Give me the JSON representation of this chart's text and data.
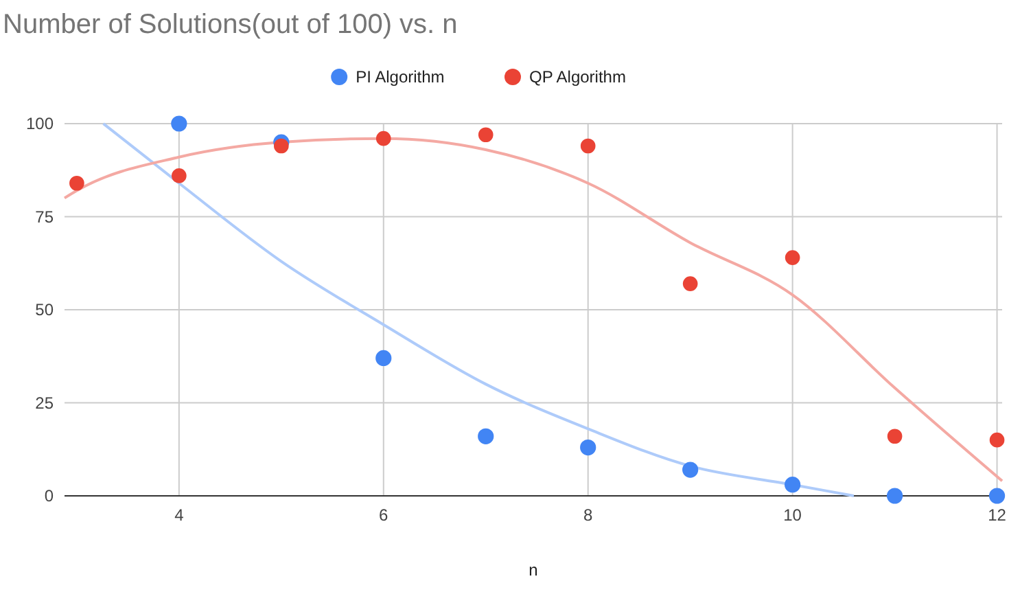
{
  "chart_data": {
    "type": "scatter",
    "title": "Number of Solutions(out of 100) vs. n",
    "xlabel": "n",
    "xlim": [
      2.88,
      12.05
    ],
    "xticks": [
      4,
      6,
      8,
      10,
      12
    ],
    "ylim": [
      0,
      100
    ],
    "yticks": [
      0,
      25,
      50,
      75,
      100
    ],
    "grid": true,
    "legend": "top",
    "marker": "circle",
    "series": [
      {
        "name": "PI Algorithm",
        "color": "#4285f4",
        "x": [
          4,
          5,
          6,
          7,
          8,
          9,
          10,
          11,
          12
        ],
        "values": [
          100,
          95,
          37,
          16,
          13,
          7,
          3,
          0,
          0
        ]
      },
      {
        "name": "QP Algorithm",
        "color": "#ea4335",
        "x": [
          3,
          4,
          5,
          6,
          7,
          8,
          9,
          10,
          11,
          12
        ],
        "values": [
          84,
          86,
          94,
          96,
          97,
          94,
          57,
          64,
          16,
          15
        ]
      },
      {
        "type": "line",
        "color": "#aecbfa",
        "marker": "none",
        "x": [
          3.26,
          4,
          5,
          6,
          7,
          8,
          9,
          10,
          10.6
        ],
        "values": [
          100,
          84,
          63,
          46,
          30,
          18,
          8,
          3,
          0
        ]
      },
      {
        "type": "line",
        "color": "#f4a9a3",
        "marker": "none",
        "x": [
          2.88,
          3,
          4,
          5,
          6,
          7,
          8,
          9,
          10,
          11,
          12.05
        ],
        "values": [
          80,
          82,
          91,
          95,
          96,
          93,
          84,
          68,
          54,
          29,
          4
        ]
      }
    ]
  }
}
